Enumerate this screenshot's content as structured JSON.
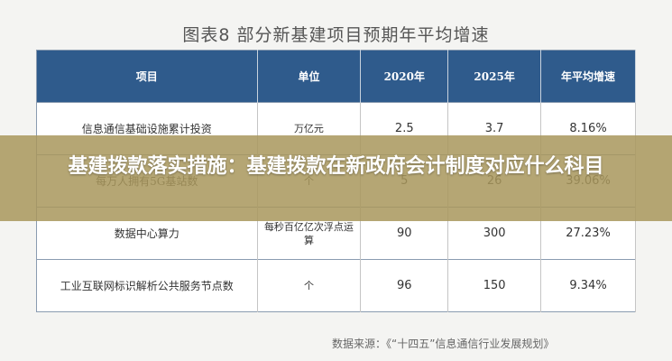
{
  "header": {
    "title": "图表8 部分新基建项目预期年平均增速"
  },
  "table": {
    "columns": [
      "项目",
      "单位",
      "2020年",
      "2025年",
      "年平均增速"
    ],
    "rows": [
      [
        "信息通信基础设施累计投资",
        "万亿元",
        "2.5",
        "3.7",
        "8.16%"
      ],
      [
        "每万人拥有5G基站数",
        "个",
        "5",
        "26",
        "39.06%"
      ],
      [
        "数据中心算力",
        "每秒百亿亿次浮点运算",
        "90",
        "300",
        "27.23%"
      ],
      [
        "工业互联网标识解析公共服务节点数",
        "个",
        "96",
        "150",
        "9.34%"
      ]
    ]
  },
  "source": "数据来源：《“十四五”信息通信行业发展规划》",
  "banner": {
    "headline": "基建拨款落实措施：基建拨款在新政府会计制度对应什么科目"
  }
}
